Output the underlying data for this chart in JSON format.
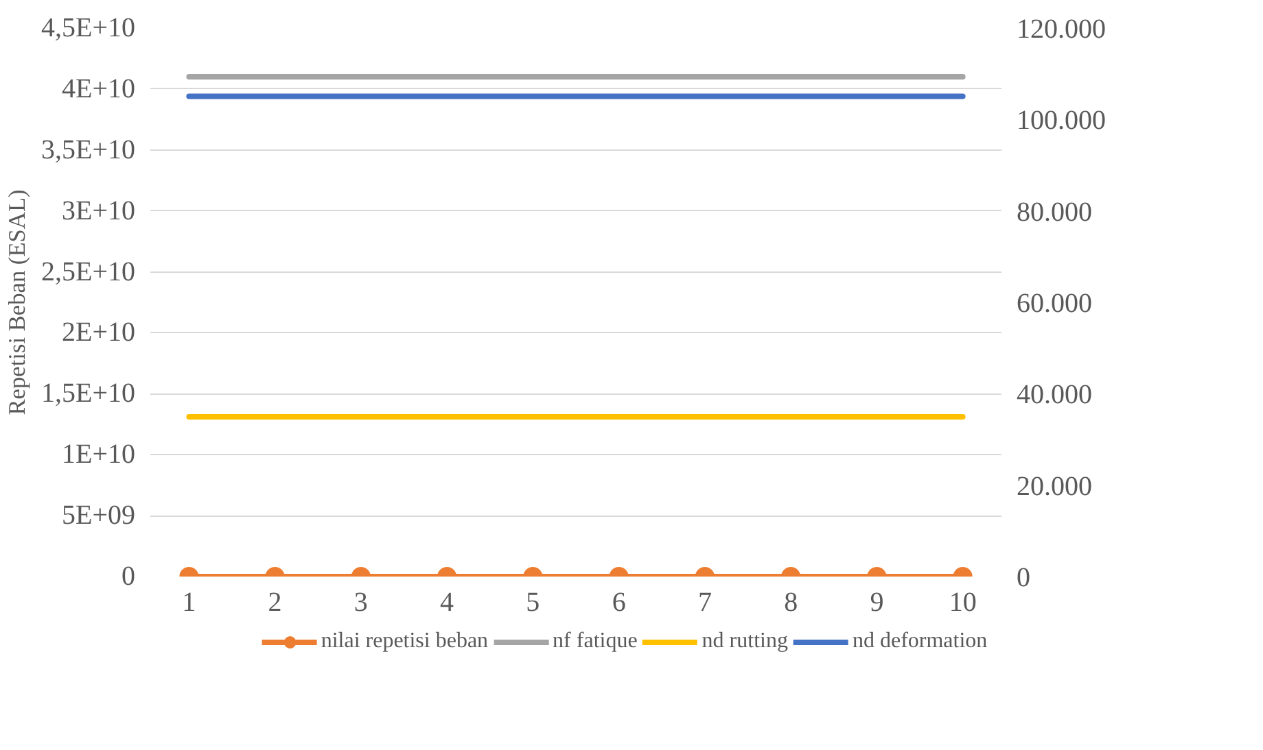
{
  "chart_data": {
    "type": "line",
    "ylabel": "Repetisi Beban (ESAL)",
    "categories": [
      "1",
      "2",
      "3",
      "4",
      "5",
      "6",
      "7",
      "8",
      "9",
      "10"
    ],
    "series": [
      {
        "name": "nilai repetisi beban",
        "color": "#ed7d31",
        "marker": "circle",
        "values": [
          0,
          0,
          0,
          0,
          0,
          0,
          0,
          0,
          0,
          0
        ]
      },
      {
        "name": "nf fatique",
        "color": "#a5a5a5",
        "marker": "none",
        "values": [
          41000000000.0,
          41000000000.0,
          41000000000.0,
          41000000000.0,
          41000000000.0,
          41000000000.0,
          41000000000.0,
          41000000000.0,
          41000000000.0,
          41000000000.0
        ]
      },
      {
        "name": "nd rutting",
        "color": "#ffc000",
        "marker": "none",
        "values": [
          13100000000.0,
          13100000000.0,
          13100000000.0,
          13100000000.0,
          13100000000.0,
          13100000000.0,
          13100000000.0,
          13100000000.0,
          13100000000.0,
          13100000000.0
        ]
      },
      {
        "name": "nd deformation",
        "color": "#4472c4",
        "marker": "none",
        "values": [
          39400000000.0,
          39400000000.0,
          39400000000.0,
          39400000000.0,
          39400000000.0,
          39400000000.0,
          39400000000.0,
          39400000000.0,
          39400000000.0,
          39400000000.0
        ]
      }
    ],
    "ylim": [
      0,
      45000000000.0
    ],
    "yticks": [
      0,
      {
        "value": 5000000000.0,
        "label": "5E+09"
      },
      {
        "value": 10000000000.0,
        "label": "1E+10"
      },
      {
        "value": 15000000000.0,
        "label": "1,5E+10"
      },
      {
        "value": 20000000000.0,
        "label": "2E+10"
      },
      {
        "value": 25000000000.0,
        "label": "2,5E+10"
      },
      {
        "value": 30000000000.0,
        "label": "3E+10"
      },
      {
        "value": 35000000000.0,
        "label": "3,5E+10"
      },
      {
        "value": 40000000000.0,
        "label": "4E+10"
      },
      {
        "value": 45000000000.0,
        "label": "4,5E+10"
      }
    ],
    "y2lim": [
      0,
      120000
    ],
    "y2ticks": [
      0,
      {
        "value": 20000,
        "label": "20.000"
      },
      {
        "value": 40000,
        "label": "40.000"
      },
      {
        "value": 60000,
        "label": "60.000"
      },
      {
        "value": 80000,
        "label": "80.000"
      },
      {
        "value": 100000,
        "label": "100.000"
      },
      {
        "value": 120000,
        "label": "120.000"
      }
    ],
    "grid": "y",
    "legend": "bottom",
    "line_style": "solid"
  }
}
